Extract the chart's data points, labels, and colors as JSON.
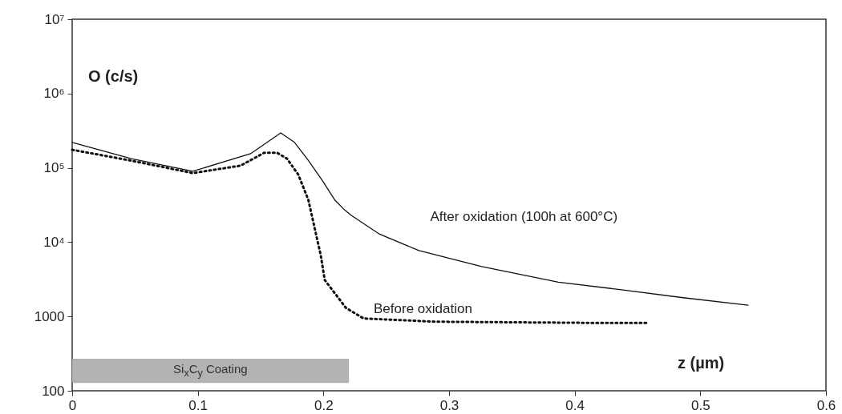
{
  "chart_data": {
    "type": "line",
    "xlabel": "z (µm)",
    "ylabel": "O (c/s)",
    "log": "y",
    "xlim": [
      0,
      0.6
    ],
    "xticks": [
      0,
      0.1,
      0.2,
      0.3,
      0.4,
      0.5,
      0.6
    ],
    "ylim": [
      100,
      10000000
    ],
    "yticks": [
      100,
      1000,
      {
        "value": 10000,
        "label": "10⁴"
      },
      {
        "value": 100000,
        "label": "10⁵"
      },
      {
        "value": 1000000,
        "label": "10⁶"
      },
      {
        "value": 10000000,
        "label": "10⁷"
      }
    ],
    "grid": false,
    "series": [
      {
        "name": "After oxidation (100h at 600°C)",
        "color": "#111111",
        "line_style": "solid",
        "x": [
          0,
          0.047,
          0.096,
          0.142,
          0.166,
          0.177,
          0.188,
          0.199,
          0.209,
          0.217,
          0.222,
          0.244,
          0.276,
          0.326,
          0.387,
          0.436,
          0.485,
          0.538
        ],
        "values": [
          220000,
          133000,
          90000,
          155000,
          295000,
          220000,
          126000,
          68000,
          37000,
          27000,
          23000,
          13000,
          7700,
          4700,
          2900,
          2300,
          1800,
          1420
        ]
      },
      {
        "name": "Before oxidation",
        "color": "#111111",
        "line_style": "dotted",
        "x": [
          0,
          0.047,
          0.096,
          0.134,
          0.153,
          0.163,
          0.171,
          0.18,
          0.188,
          0.193,
          0.198,
          0.201,
          0.218,
          0.232,
          0.289,
          0.412,
          0.458
        ],
        "values": [
          175000,
          125000,
          85000,
          107000,
          160000,
          160000,
          133000,
          81000,
          37000,
          15500,
          6500,
          3100,
          1300,
          940,
          850,
          820,
          820
        ]
      }
    ],
    "bands": [
      {
        "axis": "x",
        "from": 0,
        "to": 0.22,
        "label": "Si$_{x}$C$_{y}$ Coating",
        "color": "#b3b3b3"
      }
    ]
  }
}
